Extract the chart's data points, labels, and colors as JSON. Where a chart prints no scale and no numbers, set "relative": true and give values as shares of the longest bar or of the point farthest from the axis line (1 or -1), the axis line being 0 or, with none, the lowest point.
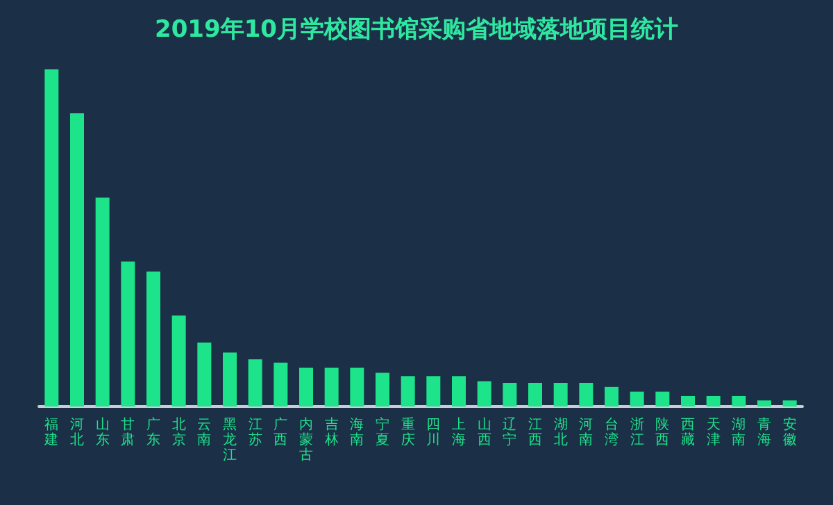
{
  "chart_data": {
    "type": "bar",
    "title": "2019年10月学校图书馆采购省地域落地项目统计",
    "relative": true,
    "categories": [
      "福建",
      "河北",
      "山东",
      "甘肃",
      "广东",
      "北京",
      "云南",
      "黑龙江",
      "江苏",
      "广西",
      "内蒙古",
      "吉林",
      "海南",
      "宁夏",
      "重庆",
      "四川",
      "上海",
      "山西",
      "辽宁",
      "江西",
      "湖北",
      "河南",
      "台湾",
      "浙江",
      "陕西",
      "西藏",
      "天津",
      "湖南",
      "青海",
      "安徽"
    ],
    "values": [
      1,
      0.87,
      0.62,
      0.43,
      0.4,
      0.27,
      0.19,
      0.16,
      0.14,
      0.13,
      0.115,
      0.115,
      0.115,
      0.1,
      0.09,
      0.09,
      0.09,
      0.075,
      0.07,
      0.07,
      0.07,
      0.07,
      0.058,
      0.044,
      0.044,
      0.031,
      0.031,
      0.031,
      0.018,
      0.018
    ],
    "color": "#1de38a",
    "grid": false
  }
}
